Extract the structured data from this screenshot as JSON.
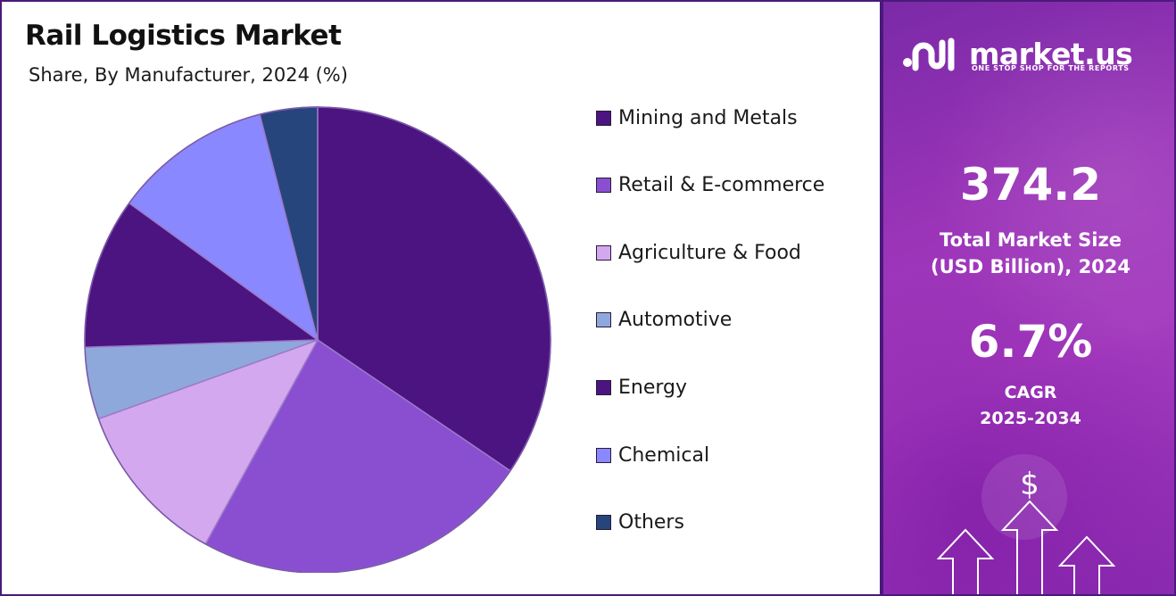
{
  "chart_data": {
    "type": "pie",
    "title": "Rail Logistics Market",
    "subtitle": "Share, By Manufacturer, 2024 (%)",
    "categories": [
      "Mining and Metals",
      "Retail & E-commerce",
      "Agriculture & Food",
      "Automotive",
      "Energy",
      "Chemical",
      "Others"
    ],
    "values": [
      34.5,
      23.5,
      11.5,
      5.0,
      10.5,
      11.0,
      4.0
    ],
    "colors": [
      "#4c1480",
      "#8a4fd0",
      "#d4a8ee",
      "#8ea8dc",
      "#4c1480",
      "#8a88ff",
      "#26457d"
    ],
    "start_angle_deg": 0,
    "direction": "clockwise",
    "legend": "right"
  },
  "sidebar": {
    "brand_name": "market.us",
    "brand_tagline": "ONE STOP SHOP FOR THE REPORTS",
    "market_size_value": "374.2",
    "market_size_label_line1": "Total Market Size",
    "market_size_label_line2": "(USD Billion), 2024",
    "cagr_value": "6.7%",
    "cagr_label_line1": "CAGR",
    "cagr_label_line2": "2025-2034",
    "dollar_symbol": "$"
  },
  "icons": [
    "brand-logo-icon",
    "dollar-icon",
    "up-arrow-icon"
  ]
}
